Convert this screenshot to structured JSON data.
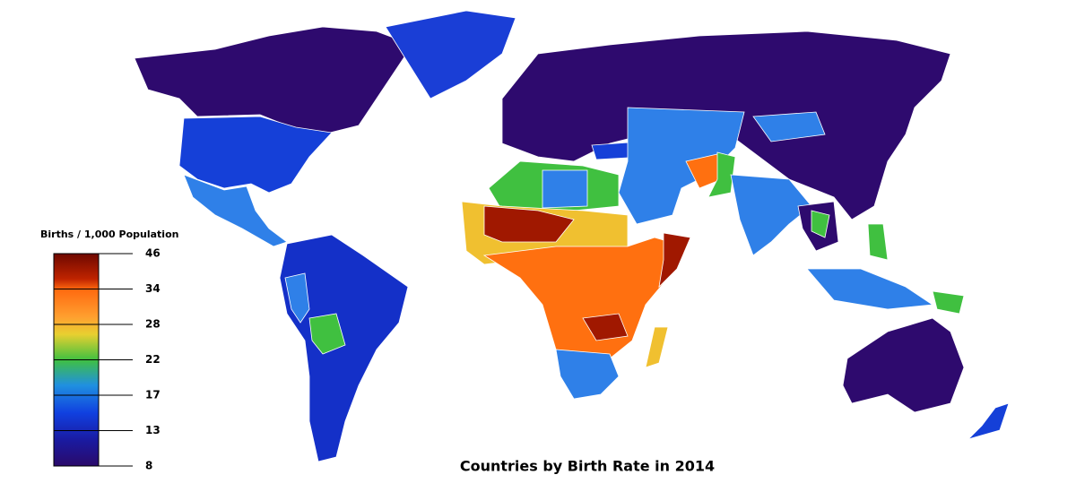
{
  "title": "Countries by Birth Rate in 2014",
  "legend": {
    "title": "Births / 1,000 Population",
    "ticks": [
      46,
      34,
      28,
      22,
      17,
      13,
      8
    ]
  }
}
